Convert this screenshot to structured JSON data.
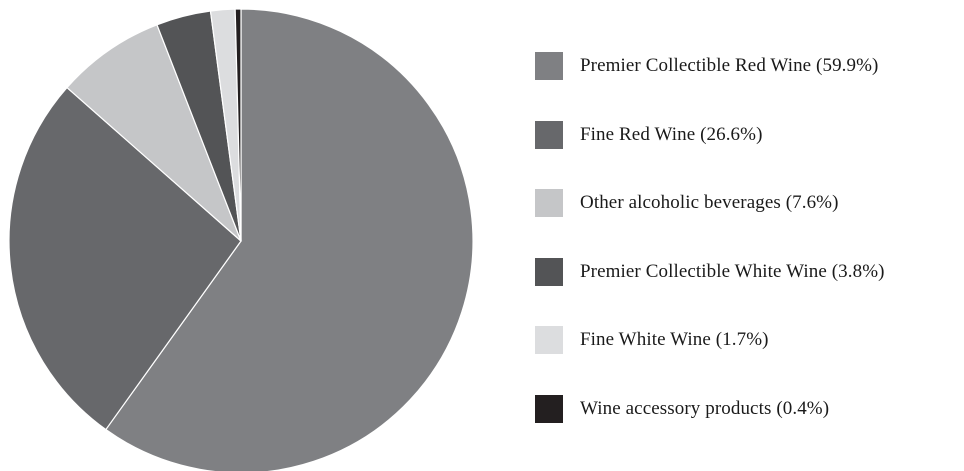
{
  "chart_data": {
    "type": "pie",
    "title": "",
    "slices": [
      {
        "label": "Premier Collectible Red Wine (59.9%)",
        "value": 59.9,
        "color": "#7f8083"
      },
      {
        "label": "Fine Red Wine (26.6%)",
        "value": 26.6,
        "color": "#67686b"
      },
      {
        "label": "Other alcoholic beverages (7.6%)",
        "value": 7.6,
        "color": "#c5c6c8"
      },
      {
        "label": "Premier Collectible White Wine (3.8%)",
        "value": 3.8,
        "color": "#535456"
      },
      {
        "label": "Fine White Wine (1.7%)",
        "value": 1.7,
        "color": "#dcdddf"
      },
      {
        "label": "Wine accessory products (0.4%)",
        "value": 0.4,
        "color": "#231f20"
      }
    ],
    "direction": "clockwise",
    "start": "top",
    "legend_position": "right"
  }
}
